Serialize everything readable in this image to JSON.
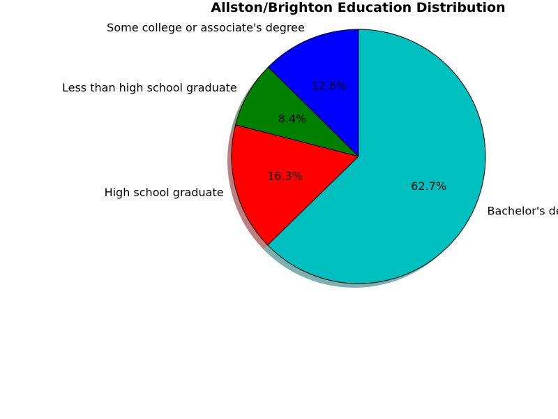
{
  "chart_data": {
    "type": "pie",
    "title": "Allston/Brighton Education Distribution",
    "slices": [
      {
        "label": "Some college or associate's degree",
        "value": 12.6,
        "pct_label": "12.6%",
        "color": "#0000ff"
      },
      {
        "label": "Less than high school graduate",
        "value": 8.4,
        "pct_label": "8.4%",
        "color": "#008000"
      },
      {
        "label": "High school graduate",
        "value": 16.3,
        "pct_label": "16.3%",
        "color": "#ff0000"
      },
      {
        "label": "Bachelor's degree or higher",
        "value": 62.7,
        "pct_label": "62.7%",
        "color": "#00bfbf"
      }
    ],
    "start_angle": 90,
    "direction": "counterclockwise",
    "shadow": true,
    "legend": "none"
  }
}
